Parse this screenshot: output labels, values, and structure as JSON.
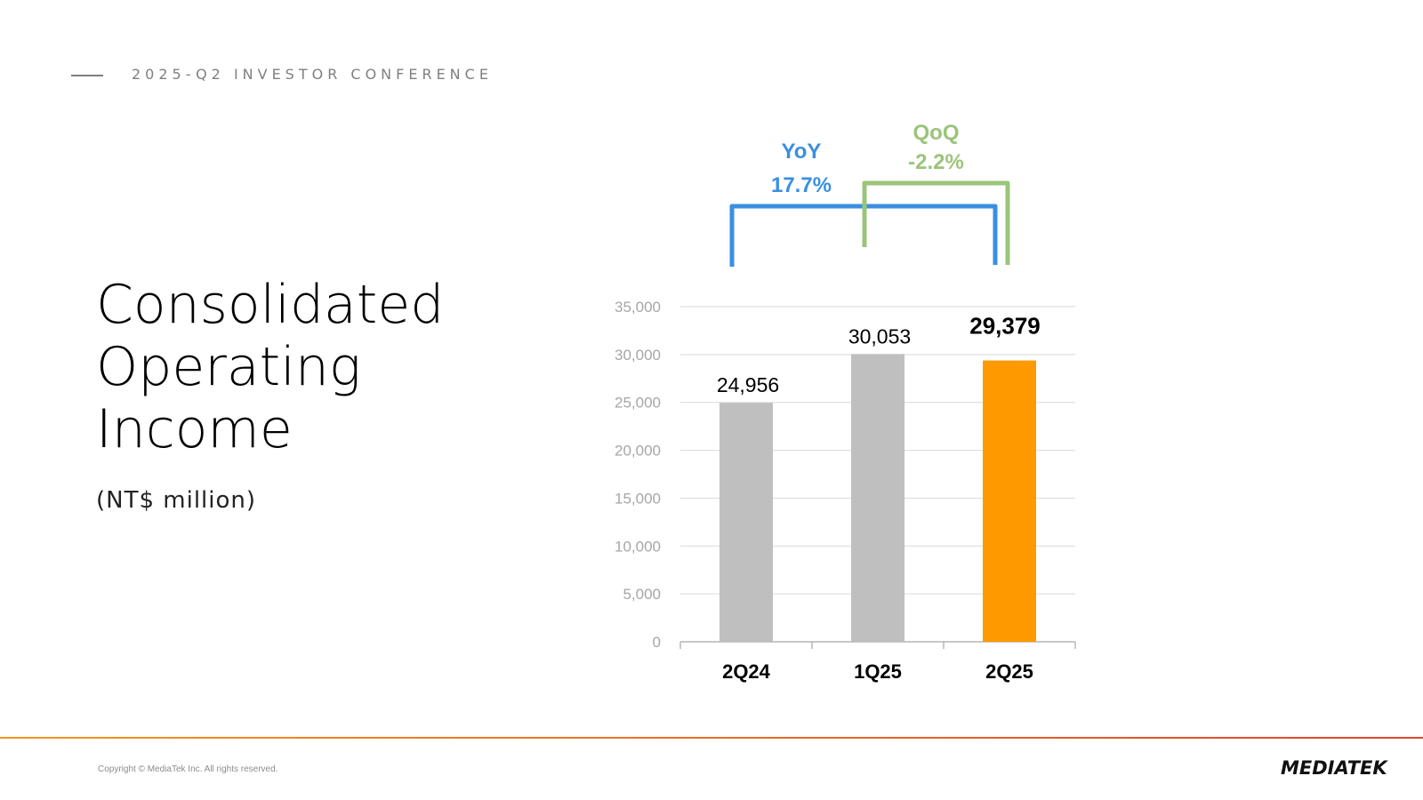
{
  "header": {
    "conference": "2025-Q2 INVESTOR CONFERENCE"
  },
  "slide": {
    "title_lines": [
      "Consolidated",
      "Operating",
      "Income"
    ],
    "unit": "(NT$ million)"
  },
  "chart_data": {
    "type": "bar",
    "categories": [
      "2Q24",
      "1Q25",
      "2Q25"
    ],
    "values": [
      24956,
      30053,
      29379
    ],
    "value_labels": [
      "24,956",
      "30,053",
      "29,379"
    ],
    "ylim": [
      0,
      35000
    ],
    "yticks": [
      0,
      5000,
      10000,
      15000,
      20000,
      25000,
      30000,
      35000
    ],
    "ytick_labels": [
      "0",
      "5,000",
      "10,000",
      "15,000",
      "20,000",
      "25,000",
      "30,000",
      "35,000"
    ],
    "grid": true,
    "colors": [
      "#bfbfbf",
      "#bfbfbf",
      "#ff9900"
    ],
    "annotations": [
      {
        "name": "YoY",
        "label": "YoY",
        "value": "17.7%",
        "from": "2Q24",
        "to": "2Q25",
        "color": "#3a8fe0"
      },
      {
        "name": "QoQ",
        "label": "QoQ",
        "value": "-2.2%",
        "from": "1Q25",
        "to": "2Q25",
        "color": "#9bc47a"
      }
    ]
  },
  "footer": {
    "copyright": "Copyright © MediaTek Inc. All rights reserved.",
    "logo": "MEDIATEK",
    "bar_colors": [
      "#f7941d",
      "#e0452b"
    ]
  }
}
